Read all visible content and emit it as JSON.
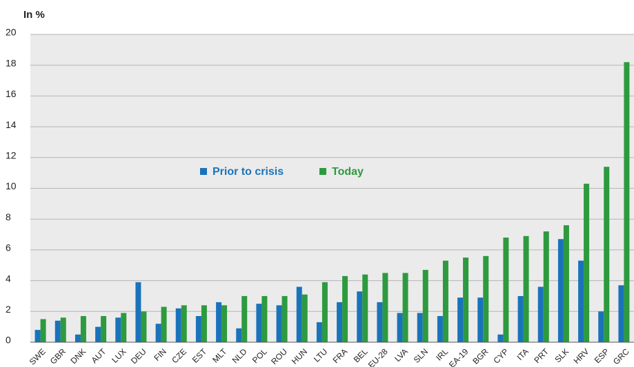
{
  "chart_data": {
    "type": "bar",
    "y_axis_label": "In %",
    "categories": [
      "SWE",
      "GBR",
      "DNK",
      "AUT",
      "LUX",
      "DEU",
      "FIN",
      "CZE",
      "EST",
      "MLT",
      "NLD",
      "POL",
      "ROU",
      "HUN",
      "LTU",
      "FRA",
      "BEL",
      "EU-28",
      "LVA",
      "SLN",
      "IRL",
      "EA-19",
      "BGR",
      "CYP",
      "ITA",
      "PRT",
      "SLK",
      "HRV",
      "ESP",
      "GRC"
    ],
    "series": [
      {
        "name": "Prior to crisis",
        "color": "#1a73ba",
        "values": [
          0.8,
          1.4,
          0.5,
          1.0,
          1.6,
          3.9,
          1.2,
          2.2,
          1.7,
          2.6,
          0.9,
          2.5,
          2.4,
          3.6,
          1.3,
          2.6,
          3.3,
          2.6,
          1.9,
          1.9,
          1.7,
          2.9,
          2.9,
          0.5,
          3.0,
          3.6,
          6.7,
          5.3,
          2.0,
          3.7
        ]
      },
      {
        "name": "Today",
        "color": "#2e9a3f",
        "values": [
          1.5,
          1.6,
          1.7,
          1.7,
          1.9,
          2.0,
          2.3,
          2.4,
          2.4,
          2.4,
          3.0,
          3.0,
          3.0,
          3.1,
          3.9,
          4.3,
          4.4,
          4.5,
          4.5,
          4.7,
          5.3,
          5.5,
          5.6,
          6.8,
          6.9,
          7.2,
          7.6,
          10.3,
          11.4,
          18.2
        ]
      }
    ],
    "ylim": [
      0,
      20
    ],
    "yticks": [
      0,
      2,
      4,
      6,
      8,
      10,
      12,
      14,
      16,
      18,
      20
    ],
    "grid": true
  }
}
